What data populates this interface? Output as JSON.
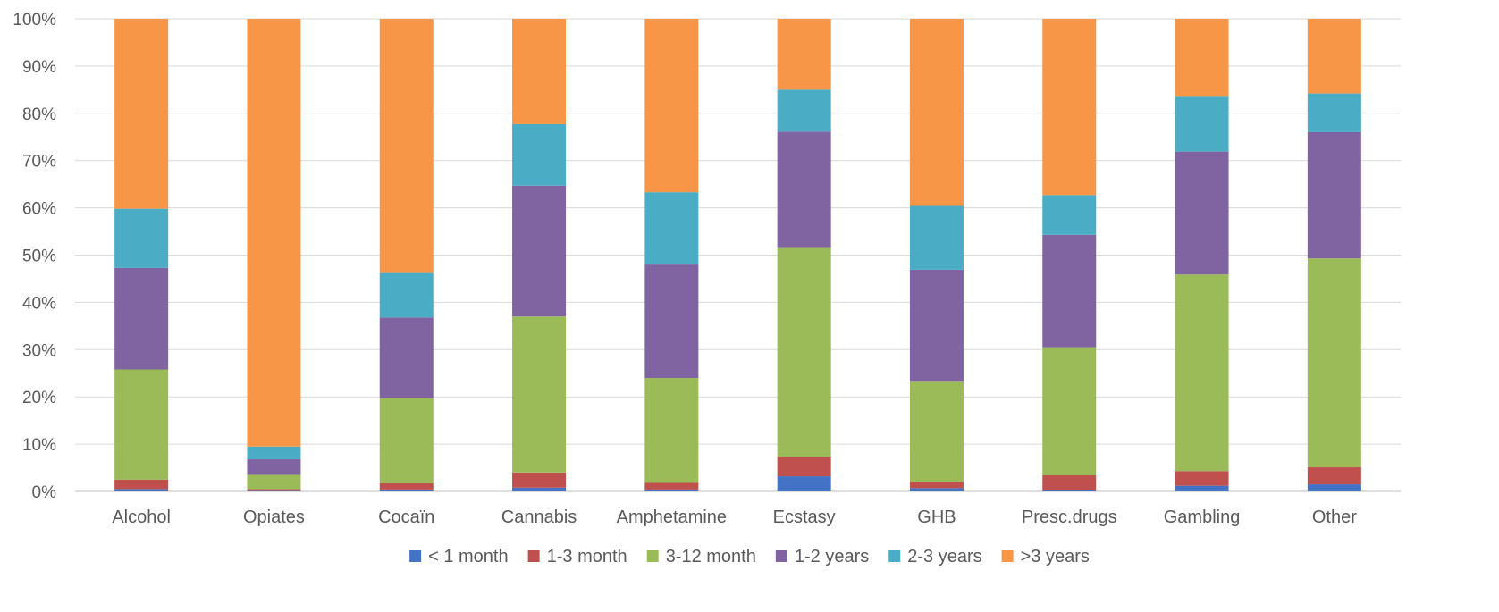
{
  "chart_data": {
    "type": "bar",
    "stacked": true,
    "percent": true,
    "categories": [
      "Alcohol",
      "Opiates",
      "Cocaïn",
      "Cannabis",
      "Amphetamine",
      "Ecstasy",
      "GHB",
      "Presc.drugs",
      "Gambling",
      "Other"
    ],
    "series": [
      {
        "name": "< 1 month",
        "color": "#4472c4",
        "values": [
          0.5,
          0.1,
          0.4,
          0.8,
          0.4,
          3.2,
          0.7,
          0.2,
          1.2,
          1.5
        ]
      },
      {
        "name": "1-3 month",
        "color": "#c0504d",
        "values": [
          2.0,
          0.4,
          1.3,
          3.2,
          1.4,
          4.1,
          1.3,
          3.2,
          3.1,
          3.6
        ]
      },
      {
        "name": "3-12 month",
        "color": "#9bbb59",
        "values": [
          23.3,
          3.0,
          18.0,
          33.0,
          22.2,
          44.2,
          21.2,
          27.1,
          41.6,
          44.2
        ]
      },
      {
        "name": "1-2 years",
        "color": "#8064a2",
        "values": [
          21.5,
          3.3,
          17.1,
          27.7,
          24.0,
          24.6,
          23.7,
          23.8,
          26.0,
          26.7
        ]
      },
      {
        "name": "2-3 years",
        "color": "#4bacc6",
        "values": [
          12.5,
          2.7,
          9.4,
          13.0,
          15.3,
          8.9,
          13.5,
          8.4,
          11.6,
          8.2
        ]
      },
      {
        "name": ">3 years",
        "color": "#f79646",
        "values": [
          40.2,
          90.5,
          53.8,
          22.3,
          36.7,
          15.0,
          39.6,
          37.3,
          16.5,
          15.8
        ]
      }
    ],
    "ylim": [
      0,
      100
    ],
    "yticks": [
      "0%",
      "10%",
      "20%",
      "30%",
      "40%",
      "50%",
      "60%",
      "70%",
      "80%",
      "90%",
      "100%"
    ],
    "grid": true,
    "legend_position": "bottom"
  }
}
